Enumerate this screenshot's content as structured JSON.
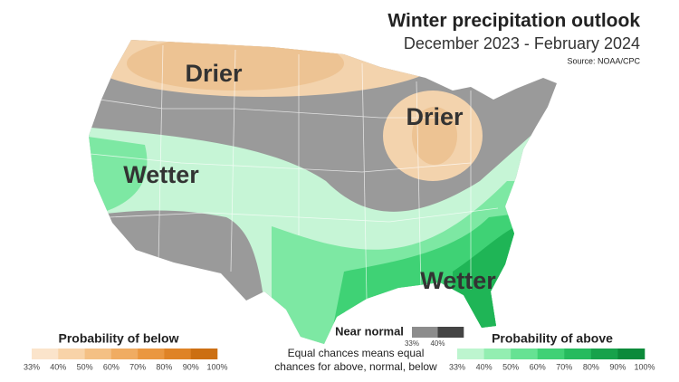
{
  "header": {
    "title": "Winter precipitation outlook",
    "subtitle": "December 2023 - February 2024",
    "source": "Source: NOAA/CPC"
  },
  "map_labels": [
    "Drier",
    "Drier",
    "Wetter",
    "Wetter"
  ],
  "legend_below": {
    "title": "Probability of below",
    "ticks": [
      "33%",
      "40%",
      "50%",
      "60%",
      "70%",
      "80%",
      "90%",
      "100%"
    ],
    "colors": [
      "#fbe4cb",
      "#f8d3a8",
      "#f4c084",
      "#f0ac62",
      "#ea9740",
      "#df8326",
      "#cc6f12"
    ]
  },
  "near_normal": {
    "title": "Near normal",
    "ticks": [
      "33%",
      "40%"
    ],
    "colors": [
      "#8c8c8c",
      "#444444"
    ]
  },
  "note": [
    "Equal chances means equal",
    "chances for above, normal, below"
  ],
  "legend_above": {
    "title": "Probability of above",
    "ticks": [
      "33%",
      "40%",
      "50%",
      "60%",
      "70%",
      "80%",
      "90%",
      "100%"
    ],
    "colors": [
      "#bdf5cf",
      "#93eeb1",
      "#66e293",
      "#40d175",
      "#26bb5e",
      "#17a24b",
      "#0c8a3a"
    ]
  }
}
